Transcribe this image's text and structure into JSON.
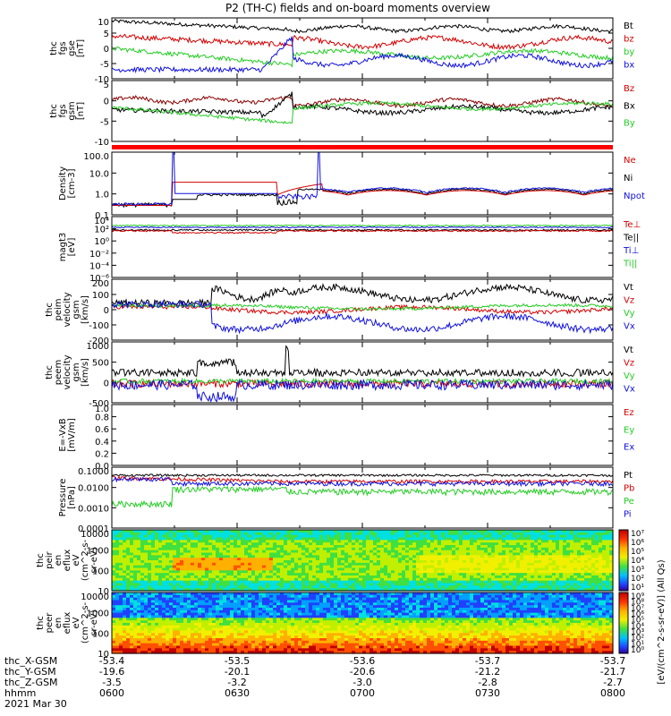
{
  "title": "P2 (TH-C) fields and on-board moments overview",
  "colors": {
    "black": "#000000",
    "red": "#d40000",
    "green": "#22cc22",
    "blue": "#1010dd",
    "darkred": "#8b0000"
  },
  "panels": [
    {
      "id": "fgs-gse",
      "ylabel": [
        "thc",
        "fgs",
        "gse",
        "[nT]"
      ],
      "ylim": [
        -10,
        10
      ],
      "ticks": [
        "10",
        "5",
        "0",
        "-5",
        "-10"
      ],
      "legend": [
        {
          "label": "Bt",
          "color": "#000000"
        },
        {
          "label": "bz",
          "color": "#d40000"
        },
        {
          "label": "by",
          "color": "#22cc22"
        },
        {
          "label": "bx",
          "color": "#1010dd"
        }
      ]
    },
    {
      "id": "fgs-gsm",
      "ylabel": [
        "thc",
        "fgs",
        "gsm",
        "[nT]"
      ],
      "ylim": [
        -15,
        10
      ],
      "ticks": [
        "5",
        "0",
        "-5",
        "-10"
      ],
      "legend": [
        {
          "label": "Bz",
          "color": "#d40000"
        },
        {
          "label": "Bx",
          "color": "#000000"
        },
        {
          "label": "By",
          "color": "#22cc22"
        }
      ]
    },
    {
      "id": "density",
      "ylabel": [
        "Density",
        "[cm-3]"
      ],
      "ylim": [
        0.1,
        100
      ],
      "log": true,
      "ticks": [
        "100.0",
        "10.0",
        "1.0",
        "0.1"
      ],
      "legend": [
        {
          "label": "Ne",
          "color": "#d40000"
        },
        {
          "label": "Ni",
          "color": "#000000"
        },
        {
          "label": "Npot",
          "color": "#1010dd"
        }
      ]
    },
    {
      "id": "temperature",
      "ylabel": [
        "magt3",
        "[eV]"
      ],
      "log": true,
      "ticks": [
        "10⁴",
        "10²",
        "10⁰",
        "10⁻²",
        "10⁻⁴",
        "10⁻⁶"
      ],
      "legend": [
        {
          "label": "Te⊥",
          "color": "#d40000"
        },
        {
          "label": "Te||",
          "color": "#000000"
        },
        {
          "label": "Ti⊥",
          "color": "#1010dd"
        },
        {
          "label": "Ti||",
          "color": "#22cc22"
        }
      ]
    },
    {
      "id": "peim-velocity",
      "ylabel": [
        "thc",
        "peim",
        "velocity",
        "gsm",
        "[km/s]"
      ],
      "ylim": [
        -200,
        200
      ],
      "ticks": [
        "200",
        "100",
        "0",
        "-100",
        "-200"
      ],
      "legend": [
        {
          "label": "Vt",
          "color": "#000000"
        },
        {
          "label": "Vz",
          "color": "#d40000"
        },
        {
          "label": "Vy",
          "color": "#22cc22"
        },
        {
          "label": "Vx",
          "color": "#1010dd"
        }
      ]
    },
    {
      "id": "peem-velocity",
      "ylabel": [
        "thc",
        "peem",
        "velocity",
        "gsm",
        "[km/s]"
      ],
      "ylim": [
        -500,
        1000
      ],
      "ticks": [
        "1000",
        "500",
        "0",
        "-500"
      ],
      "legend": [
        {
          "label": "Vt",
          "color": "#000000"
        },
        {
          "label": "Vz",
          "color": "#d40000"
        },
        {
          "label": "Vy",
          "color": "#22cc22"
        },
        {
          "label": "Vx",
          "color": "#1010dd"
        }
      ]
    },
    {
      "id": "efield",
      "ylabel": [
        "E=-VxB",
        "[mV/m]"
      ],
      "ylim": [
        0,
        1
      ],
      "ticks": [
        "1.0",
        "0.8",
        "0.6",
        "0.4",
        "0.2",
        "0.0"
      ],
      "legend": [
        {
          "label": "Ez",
          "color": "#d40000"
        },
        {
          "label": "Ey",
          "color": "#22cc22"
        },
        {
          "label": "Ex",
          "color": "#1010dd"
        }
      ]
    },
    {
      "id": "pressure",
      "ylabel": [
        "Pressure",
        "[nPa]"
      ],
      "ylim": [
        0.0001,
        0.1
      ],
      "log": true,
      "ticks": [
        "0.1000",
        "0.0100",
        "0.0010",
        "0.0001"
      ],
      "legend": [
        {
          "label": "Pt",
          "color": "#000000"
        },
        {
          "label": "Pb",
          "color": "#d40000"
        },
        {
          "label": "Pe",
          "color": "#22cc22"
        },
        {
          "label": "Pi",
          "color": "#1010dd"
        }
      ]
    },
    {
      "id": "peir-spec",
      "ylabel": [
        "thc",
        "peir",
        "en",
        "eflux",
        "eV",
        "(cm^2-s-",
        "sr-eV)"
      ],
      "ticks": [
        "10000",
        "1000",
        "100",
        "10"
      ],
      "colorbar": {
        "label": "[eV/(cm^2-s-sr-eV)] (All Qs)",
        "ticks": [
          "10⁷",
          "10⁶",
          "10⁵",
          "10⁴",
          "10³",
          "10²",
          "10¹"
        ]
      }
    },
    {
      "id": "peer-spec",
      "ylabel": [
        "thc",
        "peer",
        "en",
        "eflux",
        "eV",
        "(cm^2-s-",
        "sr-eV)"
      ],
      "ticks": [
        "10000",
        "1000",
        "100",
        "10"
      ],
      "colorbar": {
        "label": "[eV/(cm^2-s-sr-eV)] (All Qs)",
        "ticks": [
          "10⁹",
          "10⁸",
          "10⁷",
          "10⁶",
          "10⁵",
          "10⁴",
          "10³",
          "10²",
          "10¹",
          "10⁰"
        ]
      }
    }
  ],
  "x_axis": {
    "rows": [
      {
        "label": "thc_X-GSM",
        "values": [
          "-53.4",
          "-53.5",
          "-53.6",
          "-53.7",
          "-53.7"
        ]
      },
      {
        "label": "thc_Y-GSM",
        "values": [
          "-19.6",
          "-20.1",
          "-20.6",
          "-21.2",
          "-21.7"
        ]
      },
      {
        "label": "thc_Z-GSM",
        "values": [
          "-3.5",
          "-3.2",
          "-3.0",
          "-2.8",
          "-2.7"
        ]
      },
      {
        "label": "hhmm",
        "values": [
          "0600",
          "0630",
          "0700",
          "0730",
          "0800"
        ]
      }
    ],
    "date": "2021 Mar 30"
  },
  "chart_data": {
    "type": "line",
    "title": "P2 (TH-C) fields and on-board moments overview",
    "x": [
      "0600",
      "0630",
      "0700",
      "0730",
      "0800"
    ],
    "xlabel": "hhmm",
    "date": "2021 Mar 30",
    "series": [
      {
        "name": "Bt",
        "panel": "fgs-gse",
        "values": [
          9,
          7,
          6,
          7,
          8
        ]
      },
      {
        "name": "bz",
        "panel": "fgs-gse",
        "values": [
          4,
          3,
          2,
          1,
          1
        ]
      },
      {
        "name": "by",
        "panel": "fgs-gse",
        "values": [
          -1,
          -5,
          -2,
          -2,
          -2
        ]
      },
      {
        "name": "bx",
        "panel": "fgs-gse",
        "values": [
          -7,
          -6,
          -3,
          -4,
          -4
        ]
      },
      {
        "name": "Ni",
        "panel": "density",
        "values": [
          0.3,
          1.0,
          1.0,
          1.2,
          1.3
        ]
      },
      {
        "name": "Vt",
        "panel": "peim-velocity",
        "values": [
          40,
          100,
          130,
          110,
          150
        ]
      },
      {
        "name": "Vx",
        "panel": "peim-velocity",
        "values": [
          30,
          -80,
          -150,
          -100,
          -150
        ]
      },
      {
        "name": "Pt",
        "panel": "pressure",
        "values": [
          0.03,
          0.04,
          0.03,
          0.03,
          0.03
        ]
      }
    ]
  }
}
